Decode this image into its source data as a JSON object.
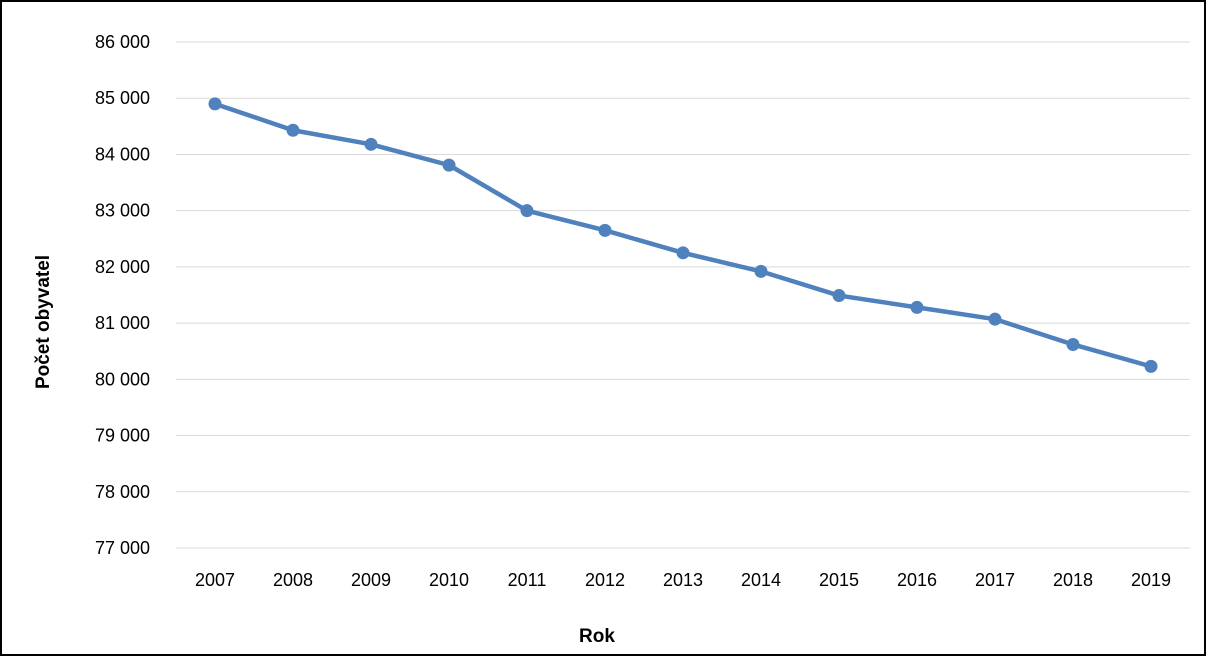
{
  "chart_data": {
    "type": "line",
    "title": "",
    "xlabel": "Rok",
    "ylabel": "Počet obyvatel",
    "categories": [
      "2007",
      "2008",
      "2009",
      "2010",
      "2011",
      "2012",
      "2013",
      "2014",
      "2015",
      "2016",
      "2017",
      "2018",
      "2019"
    ],
    "series": [
      {
        "values": [
          84900,
          84430,
          84180,
          83810,
          83000,
          82650,
          82250,
          81920,
          81490,
          81280,
          81070,
          80620,
          80230
        ]
      }
    ],
    "ylim": [
      77000,
      86000
    ],
    "yticks": [
      77000,
      78000,
      79000,
      80000,
      81000,
      82000,
      83000,
      84000,
      85000,
      86000
    ],
    "ytick_labels": [
      "77 000",
      "78 000",
      "79 000",
      "80 000",
      "81 000",
      "82 000",
      "83 000",
      "84 000",
      "85 000",
      "86 000"
    ],
    "grid": true,
    "legend": "none",
    "series_color": "#4f81bd",
    "grid_color": "#d9d9d9"
  }
}
